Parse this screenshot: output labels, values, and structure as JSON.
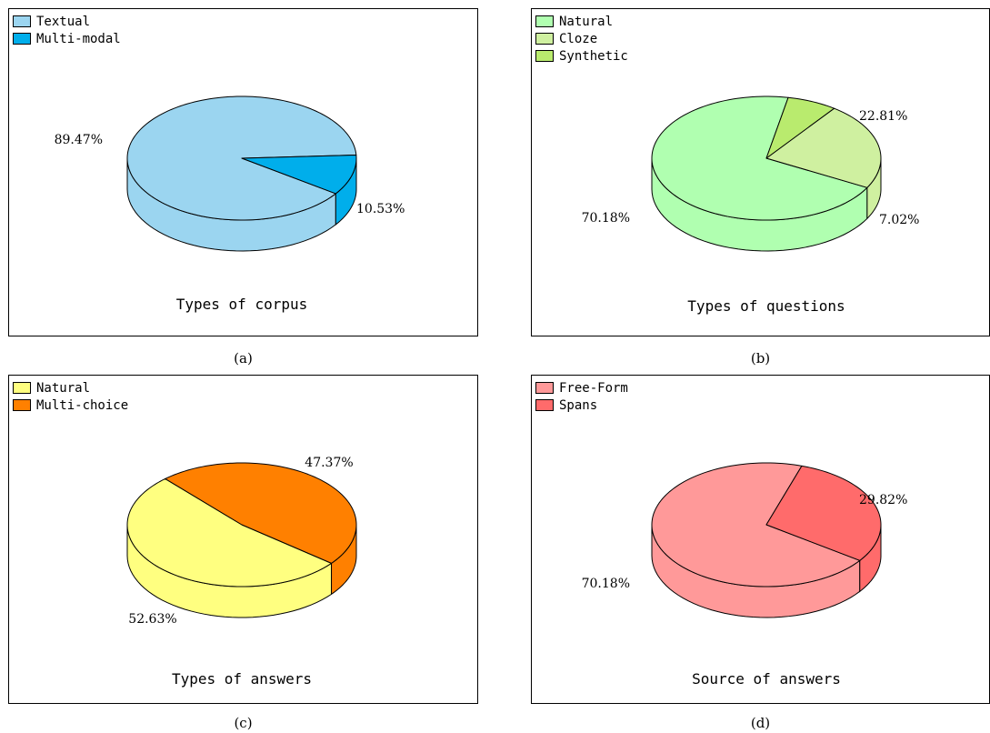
{
  "chart_data": [
    {
      "type": "pie",
      "title": "Types of corpus",
      "caption": "(a)",
      "start_angle": 3,
      "slices": [
        {
          "label": "Textual",
          "value": 89.47,
          "value_label": "89.47%",
          "color": "#9BD5F0",
          "side_color": "#9BD5F0"
        },
        {
          "label": "Multi-modal",
          "value": 10.53,
          "value_label": "10.53%",
          "color": "#00AEEB",
          "side_color": "#00AEEB"
        }
      ]
    },
    {
      "type": "pie",
      "title": "Types of questions",
      "caption": "(b)",
      "start_angle": 79,
      "slices": [
        {
          "label": "Natural",
          "value": 70.18,
          "value_label": "70.18%",
          "color": "#B0FFB0",
          "side_color": "#B0FFB0"
        },
        {
          "label": "Cloze",
          "value": 22.81,
          "value_label": "22.81%",
          "color": "#CFF0A0",
          "side_color": "#CFF0A0"
        },
        {
          "label": "Synthetic",
          "value": 7.02,
          "value_label": "7.02%",
          "color": "#B9EB6E",
          "side_color": "#B9EB6E"
        }
      ]
    },
    {
      "type": "pie",
      "title": "Types of answers",
      "caption": "(c)",
      "start_angle": 132,
      "slices": [
        {
          "label": "Natural",
          "value": 52.63,
          "value_label": "52.63%",
          "color": "#FFFF80",
          "side_color": "#FFFF80"
        },
        {
          "label": "Multi-choice",
          "value": 47.37,
          "value_label": "47.37%",
          "color": "#FF8000",
          "side_color": "#FF8000"
        }
      ]
    },
    {
      "type": "pie",
      "title": "Source of answers",
      "caption": "(d)",
      "start_angle": 72,
      "slices": [
        {
          "label": "Free-Form",
          "value": 70.18,
          "value_label": "70.18%",
          "color": "#FF9999",
          "side_color": "#FF9999"
        },
        {
          "label": "Spans",
          "value": 29.82,
          "value_label": "29.82%",
          "color": "#FF6B6B",
          "side_color": "#FF6B6B"
        }
      ]
    }
  ]
}
